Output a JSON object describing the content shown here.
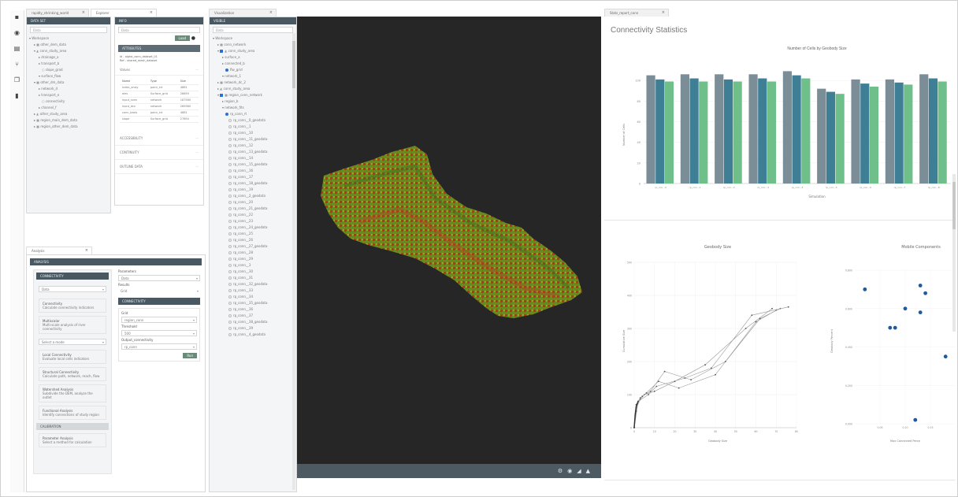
{
  "colors": {
    "header_bg": "#4a5862",
    "viewport_bg": "#262626",
    "bar1": "#7b8d97",
    "bar2": "#3f7f95",
    "bar3": "#6fbf8a",
    "point_blue": "#1f5a9e"
  },
  "sidebar_icons": [
    "menu-icon",
    "circle-icon",
    "layers-icon",
    "branch-icon",
    "copy-icon",
    "bookmark-icon"
  ],
  "tabs": {
    "left_top_1": "rapidly_shrinking_world",
    "left_top_2": "Explorer",
    "middle": "Visualization",
    "right": "Stats_report_conn",
    "left_bottom": "Analysis"
  },
  "explorer": {
    "header": "DATA SET",
    "search": "Data",
    "tree": [
      "Workspace",
      "other_dem_data",
      "conn_study_area",
      "drainage_a",
      "transport_b",
      "slope_grad",
      "surface_flow",
      "other_dm_data",
      "network_d",
      "transport_e",
      "connectivity",
      "channel_f",
      "other_study_area",
      "region_main_dem_data",
      "region_other_dem_data"
    ]
  },
  "details": {
    "header": "INFO",
    "filter": "Data",
    "button": "Load",
    "section": "ATTRIBUTES",
    "meta1": "Id - alpha_conn_dataset_01",
    "meta2": "Ref - shared_mesh_dataset",
    "sub": "Values",
    "table_headers": [
      "Name",
      "Type",
      "Size"
    ],
    "table_rows": [
      [
        "index_array",
        "point_int",
        "4681"
      ],
      [
        "elev",
        "Surface_grid",
        "28659"
      ],
      [
        "input_conn",
        "network",
        "187560"
      ],
      [
        "input_dcn",
        "network",
        "265980"
      ],
      [
        "conn_basis",
        "point_int",
        "4681"
      ],
      [
        "slope",
        "Surface_grid",
        "27894"
      ]
    ],
    "acc": [
      "ACCESSIBILITY",
      "CONTINUITY",
      "OUTLINE DATA"
    ]
  },
  "layers": {
    "header": "VISIBLE",
    "filter": "Data",
    "items": [
      "Workspace",
      "conn_network",
      "conn_study_area",
      "surface_a",
      "connected_b",
      "flw_grid",
      "network_1",
      "network_dc_2",
      "conn_study_area",
      "region_conn_network",
      "region_b",
      "network_fits",
      "rp_conn_rt"
    ],
    "rp": [
      "rp_conn__0_geodata",
      "rp_conn__1",
      "rp_conn__10",
      "rp_conn__11_geodata",
      "rp_conn__12",
      "rp_conn__13_geodata",
      "rp_conn__14",
      "rp_conn__15_geodata",
      "rp_conn__16",
      "rp_conn__17",
      "rp_conn__18_geodata",
      "rp_conn__19",
      "rp_conn__2_geodata",
      "rp_conn__20",
      "rp_conn__21_geodata",
      "rp_conn__22",
      "rp_conn__23",
      "rp_conn__24_geodata",
      "rp_conn__25",
      "rp_conn__26",
      "rp_conn__27_geodata",
      "rp_conn__28",
      "rp_conn__29",
      "rp_conn__3",
      "rp_conn__30",
      "rp_conn__31",
      "rp_conn__32_geodata",
      "rp_conn__33",
      "rp_conn__34",
      "rp_conn__35_geodata",
      "rp_conn__36",
      "rp_conn__37",
      "rp_conn__38_geodata",
      "rp_conn__39",
      "rp_conn__4_geodata"
    ]
  },
  "viewport": {
    "controls": [
      "settings-icon",
      "camera-icon",
      "chart-icon",
      "pin-icon"
    ]
  },
  "analysis": {
    "header": "ANALYSIS",
    "section1": "CONNECTIVITY",
    "select_label": "Data",
    "items": [
      {
        "title": "Connectivity",
        "desc": "Calculate connectivity indicators"
      },
      {
        "title": "Multiscalar",
        "desc": "Multi-scale analysis of river connectivity"
      }
    ],
    "select2": "Select a mode",
    "items2": [
      {
        "title": "Local Connectivity",
        "desc": "Evaluate local cells indicators"
      },
      {
        "title": "Structural Connectivity",
        "desc": "Calculate path, network, reach, flow"
      },
      {
        "title": "Watershed Analysis",
        "desc": "Subdivide the DEM, analyze the outlet"
      },
      {
        "title": "Functional Analysis",
        "desc": "Identify connections of study region"
      }
    ],
    "section2": "CALIBRATION",
    "item3": {
      "title": "Parameter Analysis",
      "desc": "Select a method for calculation"
    },
    "right_label": "Parameters",
    "right_select": "Data",
    "right_small": "Results",
    "right_val": "Grid",
    "right_section": "CONNECTIVITY",
    "field1_label": "Grid",
    "field1": "region_conn",
    "field2_label": "Threshold",
    "field2": "500",
    "field3_label": "Output_connectivity",
    "field3": "rp_conn",
    "run": "Run"
  },
  "stats": {
    "title": "Connectivity Statistics",
    "chart_data": [
      {
        "type": "bar",
        "title": "Number of Cells by Geobody Size",
        "xlabel": "Simulation",
        "ylabel": "Number of Cells",
        "categories": [
          "rp_con...0",
          "rp_con...1",
          "rp_con...2",
          "rp_con...3",
          "rp_con...4",
          "rp_con...5",
          "rp_con...6",
          "rp_con...7",
          "rp_con...8"
        ],
        "series": [
          {
            "values": [
              105,
              106,
              106,
              106,
              109,
              92,
              101,
              101,
              106
            ]
          },
          {
            "values": [
              101,
              102,
              101,
              102,
              105,
              89,
              97,
              98,
              102
            ]
          },
          {
            "values": [
              99,
              99,
              99,
              99,
              102,
              87,
              94,
              96,
              99
            ]
          }
        ],
        "ylim": [
          0,
          120
        ],
        "yticks": [
          "0",
          "20",
          "40",
          "60",
          "80",
          "100"
        ]
      },
      {
        "type": "line",
        "title": "Geobody Size",
        "xlabel": "Geobody Size",
        "ylabel": "Cumulative Size",
        "xlim": [
          0,
          80
        ],
        "ylim": [
          0,
          400
        ],
        "xticks": [
          "0",
          "10",
          "20",
          "30",
          "40",
          "50",
          "60",
          "70",
          "80"
        ],
        "yticks": [
          "0",
          "100",
          "200",
          "300",
          "400",
          "500"
        ],
        "series": [
          {
            "x": [
              0,
              1,
              3,
              5,
              10,
              20,
              35,
              55,
              68
            ],
            "y": [
              0,
              60,
              85,
              100,
              110,
              140,
              190,
              300,
              360
            ]
          },
          {
            "x": [
              0,
              1,
              3,
              6,
              12,
              22,
              40,
              60,
              70
            ],
            "y": [
              0,
              70,
              90,
              105,
              140,
              120,
              160,
              320,
              355
            ]
          },
          {
            "x": [
              0,
              2,
              4,
              8,
              15,
              28,
              45,
              62,
              72
            ],
            "y": [
              0,
              80,
              95,
              110,
              170,
              145,
              200,
              330,
              360
            ]
          },
          {
            "x": [
              0,
              1,
              2,
              7,
              11,
              25,
              38,
              58,
              76
            ],
            "y": [
              0,
              50,
              80,
              100,
              125,
              150,
              180,
              340,
              365
            ]
          }
        ]
      },
      {
        "type": "scatter",
        "title": "Mobile Components",
        "xlabel": "Max Connected Perce",
        "ylabel": "Geobody Percent",
        "x": [
          0.02,
          0.07,
          0.08,
          0.1,
          0.13,
          0.13,
          0.14,
          0.12,
          0.18
        ],
        "y": [
          0.7,
          0.5,
          0.5,
          0.6,
          0.58,
          0.72,
          0.68,
          0.02,
          0.35
        ],
        "xticks": [
          "0.05",
          "0.10",
          "0.15"
        ],
        "yticks": [
          "0.000",
          "0.200",
          "0.400",
          "0.600",
          "0.800"
        ]
      }
    ]
  }
}
